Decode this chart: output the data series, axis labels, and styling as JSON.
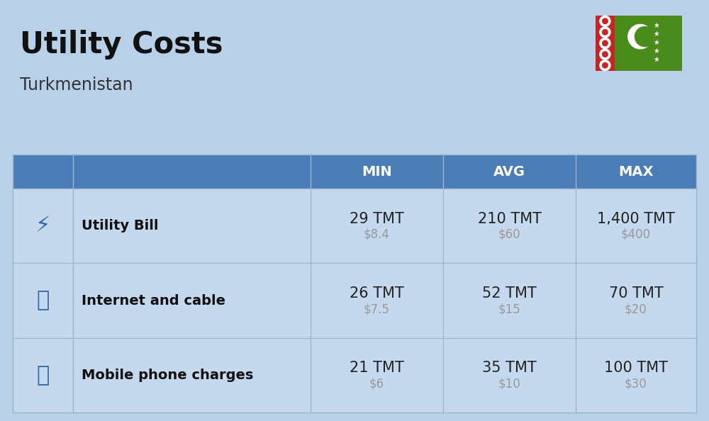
{
  "title": "Utility Costs",
  "subtitle": "Turkmenistan",
  "background_color": "#b8d0e8",
  "header_bg_color": "#4a7cb5",
  "header_text_color": "#ffffff",
  "row_color": "#c5d9ee",
  "col_headers": [
    "MIN",
    "AVG",
    "MAX"
  ],
  "rows": [
    {
      "label": "Utility Bill",
      "min_tmt": "29 TMT",
      "min_usd": "$8.4",
      "avg_tmt": "210 TMT",
      "avg_usd": "$60",
      "max_tmt": "1,400 TMT",
      "max_usd": "$400"
    },
    {
      "label": "Internet and cable",
      "min_tmt": "26 TMT",
      "min_usd": "$7.5",
      "avg_tmt": "52 TMT",
      "avg_usd": "$15",
      "max_tmt": "70 TMT",
      "max_usd": "$20"
    },
    {
      "label": "Mobile phone charges",
      "min_tmt": "21 TMT",
      "min_usd": "$6",
      "avg_tmt": "35 TMT",
      "avg_usd": "$10",
      "max_tmt": "100 TMT",
      "max_usd": "$30"
    }
  ],
  "title_fontsize": 30,
  "subtitle_fontsize": 17,
  "header_fontsize": 14,
  "cell_tmt_fontsize": 15,
  "cell_usd_fontsize": 12,
  "label_fontsize": 14,
  "tmt_color": "#222222",
  "usd_color": "#999999",
  "label_color": "#111111",
  "flag_green": "#4a8c1c",
  "flag_red": "#cc2222",
  "flag_white": "#ffffff"
}
